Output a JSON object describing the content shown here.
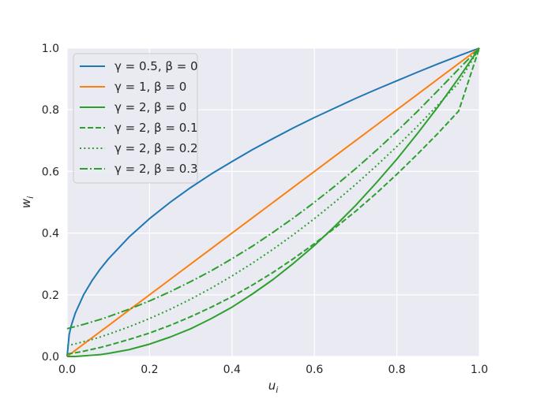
{
  "chart_data": {
    "type": "line",
    "title": "",
    "xlabel": "u",
    "xlabel_sub": "i",
    "ylabel": "w",
    "ylabel_sub": "i",
    "xlim": [
      0.0,
      1.0
    ],
    "ylim": [
      0.0,
      1.0
    ],
    "xticks": [
      "0.0",
      "0.2",
      "0.4",
      "0.6",
      "0.8",
      "1.0"
    ],
    "yticks": [
      "0.0",
      "0.2",
      "0.4",
      "0.6",
      "0.8",
      "1.0"
    ],
    "grid": true,
    "legend_position": "top-left",
    "background": "#eaeaf2",
    "x": [
      0.0,
      0.005,
      0.01,
      0.02,
      0.04,
      0.06,
      0.08,
      0.1,
      0.15,
      0.2,
      0.25,
      0.3,
      0.35,
      0.4,
      0.45,
      0.5,
      0.55,
      0.6,
      0.65,
      0.7,
      0.75,
      0.8,
      0.85,
      0.9,
      0.95,
      1.0
    ],
    "series": [
      {
        "name": "γ = 0.5, β = 0",
        "color": "#1f77b4",
        "dash": "solid",
        "values": [
          0.0,
          0.071,
          0.1,
          0.141,
          0.2,
          0.245,
          0.283,
          0.316,
          0.387,
          0.447,
          0.5,
          0.548,
          0.592,
          0.632,
          0.671,
          0.707,
          0.742,
          0.775,
          0.806,
          0.837,
          0.866,
          0.894,
          0.922,
          0.949,
          0.975,
          1.0
        ]
      },
      {
        "name": "γ = 1, β = 0",
        "color": "#ff7f0e",
        "dash": "solid",
        "values": [
          0.0,
          0.005,
          0.01,
          0.02,
          0.04,
          0.06,
          0.08,
          0.1,
          0.15,
          0.2,
          0.25,
          0.3,
          0.35,
          0.4,
          0.45,
          0.5,
          0.55,
          0.6,
          0.65,
          0.7,
          0.75,
          0.8,
          0.85,
          0.9,
          0.95,
          1.0
        ]
      },
      {
        "name": "γ = 2, β = 0",
        "color": "#2ca02c",
        "dash": "solid",
        "values": [
          0.0,
          0.0,
          0.0,
          0.0,
          0.002,
          0.004,
          0.006,
          0.01,
          0.022,
          0.04,
          0.063,
          0.09,
          0.123,
          0.16,
          0.203,
          0.25,
          0.303,
          0.36,
          0.423,
          0.49,
          0.563,
          0.64,
          0.723,
          0.81,
          0.903,
          1.0
        ]
      },
      {
        "name": "γ = 2, β = 0.1",
        "color": "#2ca02c",
        "dash": "dashed",
        "values": [
          0.008,
          0.009,
          0.01,
          0.012,
          0.017,
          0.023,
          0.029,
          0.036,
          0.055,
          0.076,
          0.101,
          0.129,
          0.16,
          0.194,
          0.232,
          0.273,
          0.318,
          0.366,
          0.417,
          0.471,
          0.529,
          0.591,
          0.656,
          0.724,
          0.796,
          1.0
        ]
      },
      {
        "name": "γ = 2, β = 0.2",
        "color": "#2ca02c",
        "dash": "dotted",
        "values": [
          0.035,
          0.037,
          0.038,
          0.041,
          0.048,
          0.055,
          0.063,
          0.072,
          0.096,
          0.123,
          0.153,
          0.186,
          0.222,
          0.261,
          0.303,
          0.348,
          0.396,
          0.447,
          0.501,
          0.558,
          0.618,
          0.681,
          0.747,
          0.816,
          0.888,
          1.0
        ]
      },
      {
        "name": "γ = 2, β = 0.3",
        "color": "#2ca02c",
        "dash": "dashdot",
        "values": [
          0.09,
          0.092,
          0.094,
          0.097,
          0.104,
          0.112,
          0.12,
          0.129,
          0.153,
          0.18,
          0.21,
          0.243,
          0.278,
          0.317,
          0.358,
          0.403,
          0.45,
          0.5,
          0.553,
          0.609,
          0.668,
          0.73,
          0.795,
          0.863,
          0.932,
          1.0
        ]
      }
    ]
  }
}
